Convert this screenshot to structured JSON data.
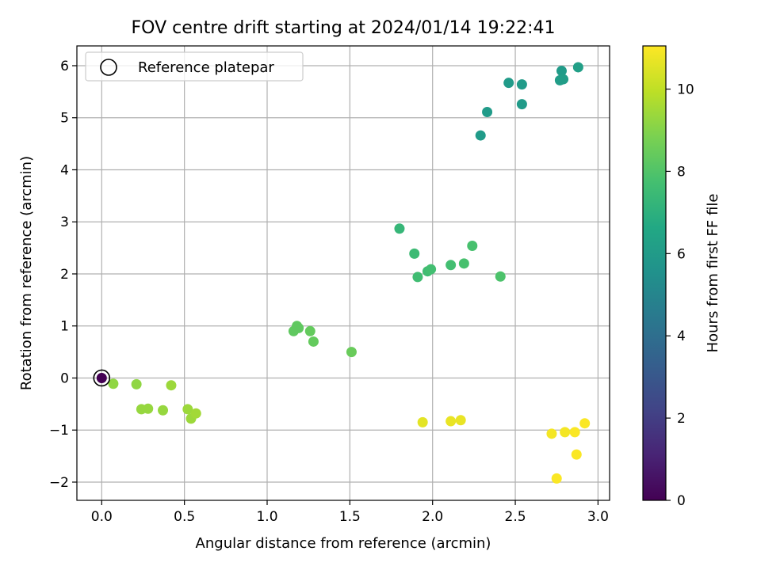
{
  "chart_data": {
    "type": "scatter",
    "title": "FOV centre drift starting at 2024/01/14 19:22:41",
    "xlabel": "Angular distance from reference (arcmin)",
    "ylabel": "Rotation from reference (arcmin)",
    "xlim": [
      -0.15,
      3.07
    ],
    "ylim": [
      -2.35,
      6.38
    ],
    "xticks": [
      0.0,
      0.5,
      1.0,
      1.5,
      2.0,
      2.5,
      3.0
    ],
    "xtick_labels": [
      "0.0",
      "0.5",
      "1.0",
      "1.5",
      "2.0",
      "2.5",
      "3.0"
    ],
    "yticks": [
      -2,
      -1,
      0,
      1,
      2,
      3,
      4,
      5,
      6
    ],
    "ytick_labels": [
      "−2",
      "−1",
      "0",
      "1",
      "2",
      "3",
      "4",
      "5",
      "6"
    ],
    "grid": true,
    "legend": {
      "placement": "top-left",
      "entries": [
        "Reference platepar"
      ]
    },
    "colorbar": {
      "label": "Hours from first FF file",
      "colormap": "viridis",
      "range": [
        0,
        11.05
      ],
      "ticks": [
        0,
        2,
        4,
        6,
        8,
        10
      ],
      "tick_labels": [
        "0",
        "2",
        "4",
        "6",
        "8",
        "10"
      ]
    },
    "reference_point": {
      "x": 0.0,
      "y": 0.0
    },
    "points": [
      {
        "x": 0.0,
        "y": 0.0,
        "hours": 0.0
      },
      {
        "x": 2.29,
        "y": 4.66,
        "hours": 6.0
      },
      {
        "x": 2.33,
        "y": 5.11,
        "hours": 6.0
      },
      {
        "x": 2.46,
        "y": 5.67,
        "hours": 6.0
      },
      {
        "x": 2.54,
        "y": 5.64,
        "hours": 6.0
      },
      {
        "x": 2.54,
        "y": 5.26,
        "hours": 6.0
      },
      {
        "x": 2.78,
        "y": 5.9,
        "hours": 6.0
      },
      {
        "x": 2.77,
        "y": 5.72,
        "hours": 6.1
      },
      {
        "x": 2.79,
        "y": 5.74,
        "hours": 6.1
      },
      {
        "x": 2.88,
        "y": 5.97,
        "hours": 6.2
      },
      {
        "x": 1.8,
        "y": 2.87,
        "hours": 7.3
      },
      {
        "x": 1.89,
        "y": 2.39,
        "hours": 7.5
      },
      {
        "x": 1.91,
        "y": 1.94,
        "hours": 7.6
      },
      {
        "x": 1.97,
        "y": 2.05,
        "hours": 7.6
      },
      {
        "x": 1.99,
        "y": 2.09,
        "hours": 7.7
      },
      {
        "x": 2.11,
        "y": 2.17,
        "hours": 7.7
      },
      {
        "x": 2.19,
        "y": 2.2,
        "hours": 7.8
      },
      {
        "x": 2.24,
        "y": 2.54,
        "hours": 7.8
      },
      {
        "x": 2.41,
        "y": 1.95,
        "hours": 7.9
      },
      {
        "x": 1.16,
        "y": 0.9,
        "hours": 8.3
      },
      {
        "x": 1.18,
        "y": 1.0,
        "hours": 8.3
      },
      {
        "x": 1.19,
        "y": 0.96,
        "hours": 8.3
      },
      {
        "x": 1.26,
        "y": 0.9,
        "hours": 8.4
      },
      {
        "x": 1.28,
        "y": 0.7,
        "hours": 8.4
      },
      {
        "x": 1.51,
        "y": 0.5,
        "hours": 8.5
      },
      {
        "x": 0.07,
        "y": -0.11,
        "hours": 9.2
      },
      {
        "x": 0.21,
        "y": -0.12,
        "hours": 9.2
      },
      {
        "x": 0.24,
        "y": -0.6,
        "hours": 9.3
      },
      {
        "x": 0.28,
        "y": -0.59,
        "hours": 9.3
      },
      {
        "x": 0.37,
        "y": -0.62,
        "hours": 9.3
      },
      {
        "x": 0.42,
        "y": -0.14,
        "hours": 9.4
      },
      {
        "x": 0.52,
        "y": -0.6,
        "hours": 9.4
      },
      {
        "x": 0.54,
        "y": -0.78,
        "hours": 9.4
      },
      {
        "x": 0.57,
        "y": -0.68,
        "hours": 9.5
      },
      {
        "x": 1.94,
        "y": -0.85,
        "hours": 10.6
      },
      {
        "x": 2.11,
        "y": -0.83,
        "hours": 10.7
      },
      {
        "x": 2.17,
        "y": -0.81,
        "hours": 10.7
      },
      {
        "x": 2.72,
        "y": -1.07,
        "hours": 10.9
      },
      {
        "x": 2.8,
        "y": -1.04,
        "hours": 10.9
      },
      {
        "x": 2.86,
        "y": -1.04,
        "hours": 11.0
      },
      {
        "x": 2.87,
        "y": -1.47,
        "hours": 11.0
      },
      {
        "x": 2.92,
        "y": -0.87,
        "hours": 11.0
      },
      {
        "x": 2.75,
        "y": -1.93,
        "hours": 11.0
      }
    ]
  }
}
